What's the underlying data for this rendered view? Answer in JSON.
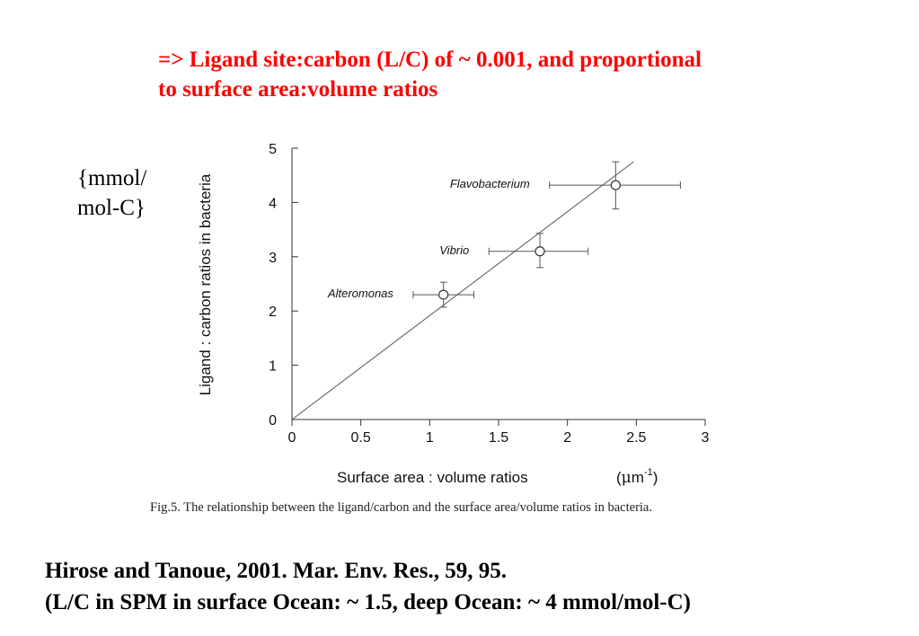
{
  "slide": {
    "headline_line1": "=> Ligand site:carbon (L/C) of ~ 0.001, and proportional",
    "headline_line2": "to surface area:volume ratios",
    "unit_line1": "{mmol/",
    "unit_line2": "mol-C}",
    "citation_line1": "Hirose and Tanoue, 2001. Mar. Env. Res., 59, 95.",
    "citation_line2": "(L/C in SPM in surface Ocean: ~ 1.5, deep Ocean: ~ 4 mmol/mol-C)",
    "headline_color": "#ff0000"
  },
  "chart_data": {
    "type": "scatter",
    "caption": "Fig.5.  The relationship between the ligand/carbon and the surface area/volume ratios in bacteria.",
    "xlabel": "Surface area : volume ratios",
    "xunit_prefix": "(",
    "xunit_mu": "μ",
    "xunit_m": "m",
    "xunit_exp": "-1",
    "xunit_suffix": ")",
    "ylabel": "Ligand : carbon ratios in bacteria",
    "xlim": [
      0,
      3
    ],
    "ylim": [
      0,
      5
    ],
    "x_ticks": [
      0,
      0.5,
      1,
      1.5,
      2,
      2.5,
      3
    ],
    "x_tick_labels": [
      "0",
      "0.5",
      "1",
      "1.5",
      "2",
      "2.5",
      "3"
    ],
    "y_ticks": [
      0,
      1,
      2,
      3,
      4,
      5
    ],
    "y_tick_labels": [
      "0",
      "1",
      "2",
      "3",
      "4",
      "5"
    ],
    "points": [
      {
        "name": "Alteromonas",
        "x": 1.1,
        "y": 2.3,
        "x_err": [
          0.88,
          1.32
        ],
        "y_err": [
          2.07,
          2.53
        ]
      },
      {
        "name": "Vibrio",
        "x": 1.8,
        "y": 3.1,
        "x_err": [
          1.43,
          2.15
        ],
        "y_err": [
          2.8,
          3.43
        ]
      },
      {
        "name": "Flavobacterium",
        "x": 2.35,
        "y": 4.32,
        "x_err": [
          1.87,
          2.82
        ],
        "y_err": [
          3.88,
          4.75
        ]
      }
    ],
    "fit_line": {
      "x": [
        0,
        2.48
      ],
      "y": [
        0,
        4.75
      ]
    },
    "grid": false
  }
}
